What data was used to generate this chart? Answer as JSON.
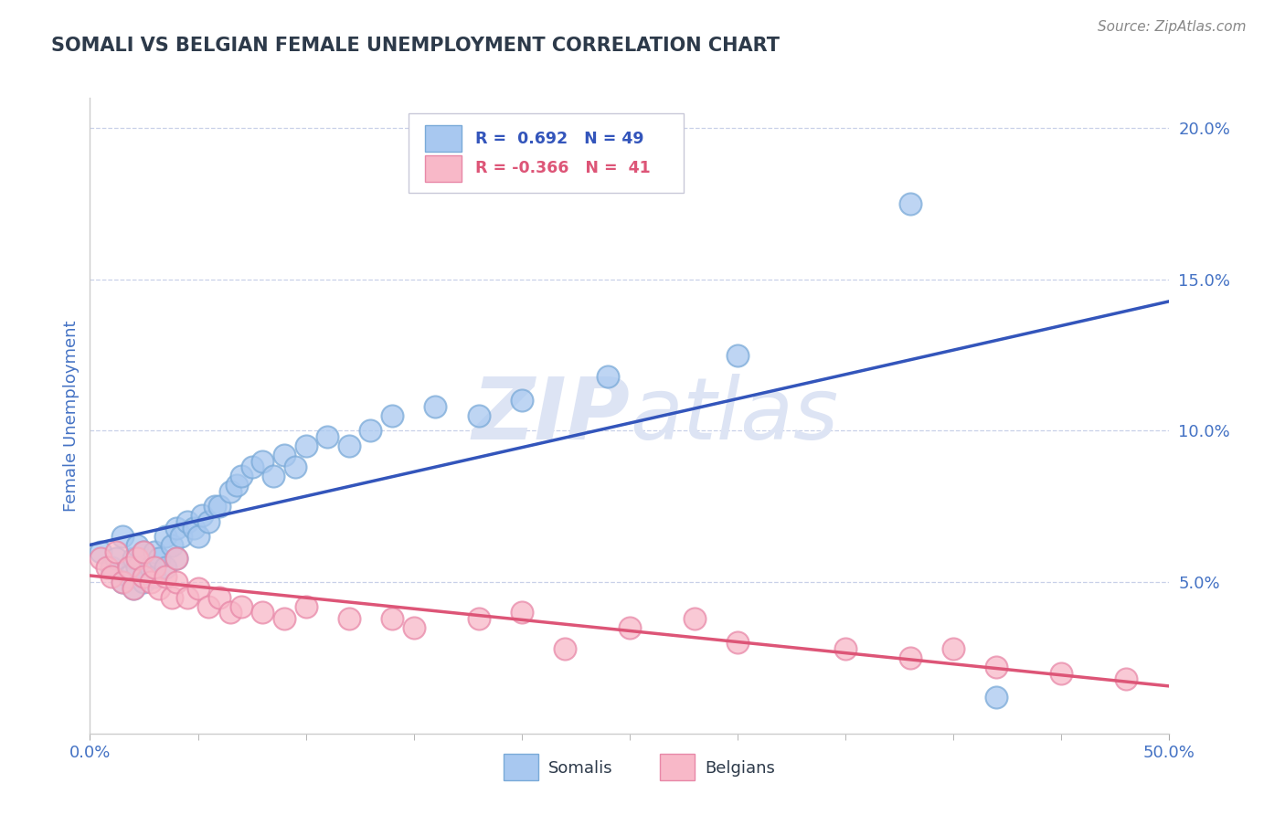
{
  "title": "SOMALI VS BELGIAN FEMALE UNEMPLOYMENT CORRELATION CHART",
  "source_text": "Source: ZipAtlas.com",
  "ylabel": "Female Unemployment",
  "xlim": [
    0.0,
    0.5
  ],
  "ylim": [
    0.0,
    0.21
  ],
  "y_ticks": [
    0.05,
    0.1,
    0.15,
    0.2
  ],
  "y_tick_labels": [
    "5.0%",
    "10.0%",
    "15.0%",
    "20.0%"
  ],
  "somali_R": 0.692,
  "somali_N": 49,
  "belgian_R": -0.366,
  "belgian_N": 41,
  "somali_color": "#a8c8f0",
  "somali_edge_color": "#7aaad8",
  "belgian_color": "#f8b8c8",
  "belgian_edge_color": "#e888a8",
  "somali_line_color": "#3355bb",
  "belgian_line_color": "#dd5577",
  "grid_color": "#c8d0e8",
  "background_color": "#ffffff",
  "title_color": "#2d3a4a",
  "axis_label_color": "#4472c4",
  "tick_color": "#4472c4",
  "watermark_color": "#dde4f4",
  "somali_x": [
    0.005,
    0.01,
    0.012,
    0.015,
    0.015,
    0.018,
    0.02,
    0.02,
    0.022,
    0.022,
    0.025,
    0.025,
    0.028,
    0.03,
    0.03,
    0.032,
    0.035,
    0.035,
    0.038,
    0.04,
    0.04,
    0.042,
    0.045,
    0.048,
    0.05,
    0.052,
    0.055,
    0.058,
    0.06,
    0.065,
    0.068,
    0.07,
    0.075,
    0.08,
    0.085,
    0.09,
    0.095,
    0.1,
    0.11,
    0.12,
    0.13,
    0.14,
    0.16,
    0.18,
    0.2,
    0.24,
    0.3,
    0.38,
    0.42
  ],
  "somali_y": [
    0.06,
    0.055,
    0.058,
    0.05,
    0.065,
    0.052,
    0.048,
    0.058,
    0.055,
    0.062,
    0.05,
    0.06,
    0.055,
    0.052,
    0.06,
    0.058,
    0.055,
    0.065,
    0.062,
    0.058,
    0.068,
    0.065,
    0.07,
    0.068,
    0.065,
    0.072,
    0.07,
    0.075,
    0.075,
    0.08,
    0.082,
    0.085,
    0.088,
    0.09,
    0.085,
    0.092,
    0.088,
    0.095,
    0.098,
    0.095,
    0.1,
    0.105,
    0.108,
    0.105,
    0.11,
    0.118,
    0.125,
    0.175,
    0.012
  ],
  "belgian_x": [
    0.005,
    0.008,
    0.01,
    0.012,
    0.015,
    0.018,
    0.02,
    0.022,
    0.025,
    0.025,
    0.028,
    0.03,
    0.032,
    0.035,
    0.038,
    0.04,
    0.04,
    0.045,
    0.05,
    0.055,
    0.06,
    0.065,
    0.07,
    0.08,
    0.09,
    0.1,
    0.12,
    0.14,
    0.15,
    0.18,
    0.2,
    0.22,
    0.25,
    0.28,
    0.3,
    0.35,
    0.38,
    0.4,
    0.42,
    0.45,
    0.48
  ],
  "belgian_y": [
    0.058,
    0.055,
    0.052,
    0.06,
    0.05,
    0.055,
    0.048,
    0.058,
    0.052,
    0.06,
    0.05,
    0.055,
    0.048,
    0.052,
    0.045,
    0.05,
    0.058,
    0.045,
    0.048,
    0.042,
    0.045,
    0.04,
    0.042,
    0.04,
    0.038,
    0.042,
    0.038,
    0.038,
    0.035,
    0.038,
    0.04,
    0.028,
    0.035,
    0.038,
    0.03,
    0.028,
    0.025,
    0.028,
    0.022,
    0.02,
    0.018
  ]
}
